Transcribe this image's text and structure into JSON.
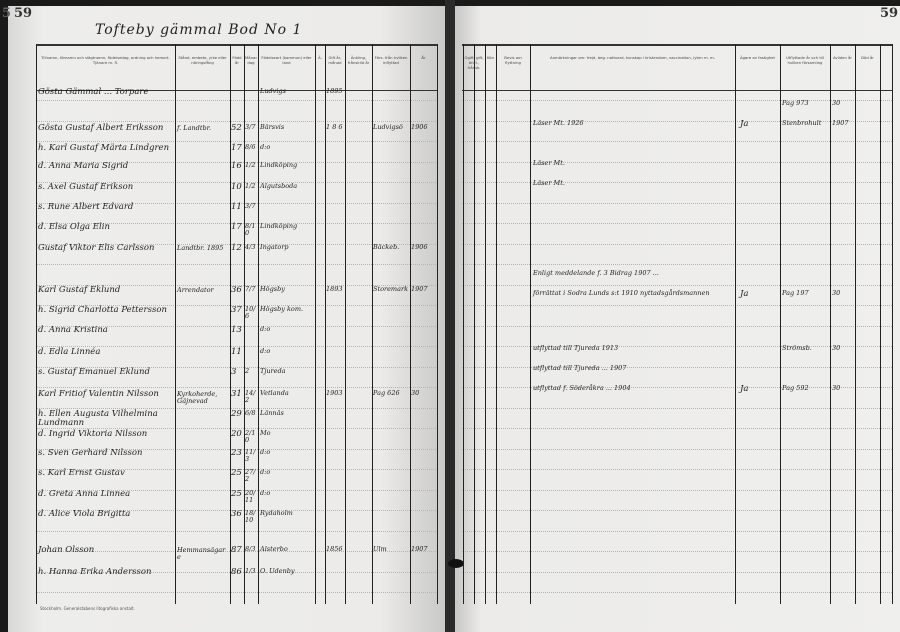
{
  "left_page": {
    "page_number": "59",
    "edge_number": "5",
    "heading": "Tofteby gämmal  Bod No 1",
    "column_headers": [
      "Tillnamn, förnamn och slägtnamn; födelsedag, ordning och hemort. Tjänare m. fl.",
      "Stånd, embete, yrke eller näringsfång",
      "Född år",
      "Månad dag",
      "Födelseort (kommun) eller land",
      "Ä.",
      "Gift år, månad",
      "Änkling, frånskild år",
      "Förs. från hvilken inflyttad",
      "År"
    ],
    "rows": [
      {
        "name": "Gösta Gämmal ... Torpare",
        "occupation": "",
        "age": "",
        "date": "",
        "birthplace": "Ludvigs",
        "extra": "1895",
        "from": "",
        "year": ""
      },
      {
        "name": "Gösta Gustaf Albert Eriksson",
        "occupation": "f. Landtbr.",
        "age": "52",
        "date": "3/7",
        "birthplace": "Bärsvis",
        "extra": "1 8 6",
        "from": "Ludvigsö",
        "year": "1906"
      },
      {
        "name": "h. Karl Gustaf Märta Lindgren",
        "occupation": "",
        "age": "17",
        "date": "8/6",
        "birthplace": "d:o",
        "extra": "",
        "from": "",
        "year": ""
      },
      {
        "name": "d. Anna Maria Sigrid",
        "occupation": "",
        "age": "16",
        "date": "1/2",
        "birthplace": "Lindköping",
        "extra": "",
        "from": "",
        "year": ""
      },
      {
        "name": "s. Axel Gustaf Erikson",
        "occupation": "",
        "age": "10",
        "date": "1/2",
        "birthplace": "Algutsboda",
        "extra": "",
        "from": "",
        "year": ""
      },
      {
        "name": "s. Rune Albert Edvard",
        "occupation": "",
        "age": "11",
        "date": "3/7",
        "birthplace": "",
        "extra": "",
        "from": "",
        "year": ""
      },
      {
        "name": "d. Elsa Olga Elin",
        "occupation": "",
        "age": "17",
        "date": "8/10",
        "birthplace": "Lindköping",
        "extra": "",
        "from": "",
        "year": ""
      },
      {
        "name": "Gustaf Viktor Elis Carlsson",
        "occupation": "Landtbr. 1895",
        "age": "12",
        "date": "4/3",
        "birthplace": "Ingatorp",
        "extra": "",
        "from": "Bäckeb.",
        "year": "1906"
      },
      {
        "name": "Karl Gustaf Eklund",
        "occupation": "Arrendator",
        "age": "36",
        "date": "7/7",
        "birthplace": "Högsby",
        "extra": "1893",
        "from": "Storemark",
        "year": "1907"
      },
      {
        "name": "h. Sigrid Charlotta Pettersson",
        "occupation": "",
        "age": "37",
        "date": "10/6",
        "birthplace": "Högsby kom.",
        "extra": "",
        "from": "",
        "year": ""
      },
      {
        "name": "d. Anna Kristina",
        "occupation": "",
        "age": "13",
        "date": "",
        "birthplace": "d:o",
        "extra": "",
        "from": "",
        "year": ""
      },
      {
        "name": "d. Edla Linnéa",
        "occupation": "",
        "age": "11",
        "date": "",
        "birthplace": "d:o",
        "extra": "",
        "from": "",
        "year": ""
      },
      {
        "name": "s. Gustaf Emanuel Eklund",
        "occupation": "",
        "age": "3",
        "date": "2",
        "birthplace": "Tjureda",
        "extra": "",
        "from": "",
        "year": ""
      },
      {
        "name": "Karl Fritiof Valentin Nilsson",
        "occupation": "Kyrkoherde, Gäjnevad",
        "age": "31",
        "date": "14/2",
        "birthplace": "Vetlanda",
        "extra": "1903",
        "from": "Pag 626",
        "year": "30"
      },
      {
        "name": "h. Ellen Augusta Vilhelmina Lundmann",
        "occupation": "",
        "age": "29",
        "date": "6/8",
        "birthplace": "Lännäs",
        "extra": "",
        "from": "",
        "year": ""
      },
      {
        "name": "d. Ingrid Viktoria Nilsson",
        "occupation": "",
        "age": "20",
        "date": "2/10",
        "birthplace": "Mo",
        "extra": "",
        "from": "",
        "year": ""
      },
      {
        "name": "s. Sven Gerhard Nilsson",
        "occupation": "",
        "age": "23",
        "date": "11/3",
        "birthplace": "d:o",
        "extra": "",
        "from": "",
        "year": ""
      },
      {
        "name": "s. Karl Ernst Gustav",
        "occupation": "",
        "age": "25",
        "date": "27/2",
        "birthplace": "d:o",
        "extra": "",
        "from": "",
        "year": ""
      },
      {
        "name": "d. Greta Anna Linnea",
        "occupation": "",
        "age": "25",
        "date": "20/11",
        "birthplace": "d:o",
        "extra": "",
        "from": "",
        "year": ""
      },
      {
        "name": "d. Alice Viola Brigitta",
        "occupation": "",
        "age": "36",
        "date": "18/10",
        "birthplace": "Rydaholm",
        "extra": "",
        "from": "",
        "year": ""
      },
      {
        "name": "Johan Olsson",
        "occupation": "Hemmansägare",
        "age": "87",
        "date": "8/3",
        "birthplace": "Alsterbo",
        "extra": "1856",
        "from": "Ulm",
        "year": "1907"
      },
      {
        "name": "h. Hanna Erika Andersson",
        "occupation": "",
        "age": "86",
        "date": "1/3",
        "birthplace": "O. Udenby",
        "extra": "",
        "from": "",
        "year": ""
      }
    ],
    "footer_note": "Stockholm. Generalstabens litografiska anstalt."
  },
  "right_page": {
    "page_number": "59",
    "column_headers": [
      "Ogift, gift, änkl., frånsk.",
      "Kön",
      "Bevis om flyttning",
      "Anmärkningar om: frejd, beg. nattvard, kunskap i kristendom, vaccination, lyten m. m.",
      "Ägare av fastighet",
      "Utflyttade år och till hvilken församling",
      "Avliden år",
      "Död år"
    ],
    "entries": [
      {
        "remark": "",
        "owner": "",
        "moved": "Pag 973",
        "year": "30"
      },
      {
        "remark": "Läser Mt. 1926",
        "owner": "Ja",
        "moved": "Stenbrohult",
        "year": "1907"
      },
      {
        "remark": "Läser Mt.",
        "owner": "",
        "moved": "",
        "year": ""
      },
      {
        "remark": "Läser Mt.",
        "owner": "",
        "moved": "",
        "year": ""
      },
      {
        "remark": "Enligt meddelande f. 3 Bidrag 1907 ...",
        "owner": "",
        "moved": "",
        "year": ""
      },
      {
        "remark": "förrättat i Sodra Lunds s:t 1910 nyttadsgårdsmannen",
        "owner": "Ja",
        "moved": "Pag 197",
        "year": "30"
      },
      {
        "remark": "utflyttad till Tjureda 1913",
        "owner": "",
        "moved": "Strömsb.",
        "year": "30"
      },
      {
        "remark": "utflyttad till Tjureda ... 1907",
        "owner": "",
        "moved": "",
        "year": ""
      },
      {
        "remark": "utflyttad f. Söderåkra ... 1904",
        "owner": "Ja",
        "moved": "Pag 592",
        "year": "30"
      }
    ]
  },
  "colors": {
    "paper": "#ecebea",
    "ink": "#1e1e1e",
    "background": "#1a1a1a"
  }
}
